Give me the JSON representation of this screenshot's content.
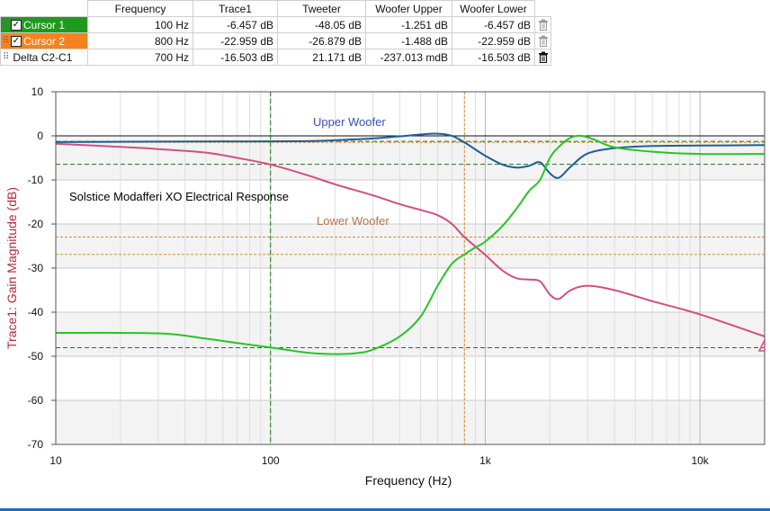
{
  "cursor_table": {
    "headers": [
      "Frequency",
      "Trace1",
      "Tweeter",
      "Woofer Upper",
      "Woofer Lower"
    ],
    "rows": [
      {
        "name": "Cursor 1",
        "checked": true,
        "cells": [
          "100 Hz",
          "-6.457 dB",
          "-48.05 dB",
          "-1.251 dB",
          "-6.457 dB"
        ]
      },
      {
        "name": "Cursor 2",
        "checked": true,
        "cells": [
          "800 Hz",
          "-22.959 dB",
          "-26.879 dB",
          "-1.488 dB",
          "-22.959 dB"
        ]
      },
      {
        "name": "Delta C2-C1",
        "checked": false,
        "cells": [
          "700 Hz",
          "-16.503 dB",
          "21.171 dB",
          "-237.013 mdB",
          "-16.503 dB"
        ]
      }
    ],
    "colors": {
      "cursor1": "#1f9a1f",
      "cursor2": "#f58220"
    },
    "icons": [
      "grip-icon",
      "checkbox-icon",
      "trash-icon"
    ]
  },
  "chart_data": {
    "type": "line",
    "title": "",
    "xlabel": "Frequency (Hz)",
    "ylabel": "Trace1: Gain Magnitude (dB)",
    "xscale": "log",
    "xlim": [
      10,
      20000
    ],
    "ylim": [
      -70,
      10
    ],
    "x_ticks": [
      10,
      100,
      1000,
      10000
    ],
    "x_tick_labels": [
      "10",
      "100",
      "1k",
      "10k"
    ],
    "y_ticks": [
      10,
      0,
      -10,
      -20,
      -30,
      -40,
      -50,
      -60,
      -70
    ],
    "y_tick_labels": [
      "10",
      "0",
      "-10",
      "-20",
      "-30",
      "-40",
      "-50",
      "-60",
      "-70"
    ],
    "grid": true,
    "annotations": [
      {
        "text": "Solstice Modafferi XO Electrical Response",
        "color": "#000000"
      },
      {
        "text": "Upper Woofer",
        "color": "#3b4fb8"
      },
      {
        "text": "Lower Woofer",
        "color": "#b8734a"
      }
    ],
    "series": [
      {
        "color": "#1f5f96",
        "x": [
          10,
          30,
          100,
          150,
          200,
          300,
          400,
          500,
          600,
          700,
          800,
          1000,
          1200,
          1400,
          1600,
          1800,
          2000,
          2200,
          2500,
          3000,
          4000,
          6000,
          10000,
          20000
        ],
        "y": [
          -1.4,
          -1.3,
          -1.25,
          -1.2,
          -1.0,
          -0.6,
          -0.1,
          0.3,
          0.5,
          0.0,
          -1.5,
          -4.5,
          -6.5,
          -7.2,
          -6.8,
          -6.0,
          -8.5,
          -9.5,
          -7.0,
          -4.0,
          -2.8,
          -2.3,
          -2.2,
          -2.1
        ]
      },
      {
        "color": "#d24f7e",
        "x": [
          10,
          20,
          30,
          50,
          70,
          100,
          150,
          200,
          300,
          400,
          500,
          600,
          700,
          800,
          1000,
          1200,
          1400,
          1600,
          1800,
          2000,
          2200,
          2500,
          3000,
          4000,
          6000,
          10000,
          20000
        ],
        "y": [
          -1.8,
          -2.5,
          -3.0,
          -3.8,
          -5.0,
          -6.5,
          -9.0,
          -11.0,
          -13.5,
          -15.5,
          -16.8,
          -18.0,
          -20.0,
          -22.96,
          -27.0,
          -30.5,
          -32.3,
          -32.6,
          -33.0,
          -36.0,
          -37.0,
          -35.0,
          -34.0,
          -35.0,
          -37.5,
          -40.5,
          -45.5
        ]
      },
      {
        "color": "#27c427",
        "x": [
          10,
          30,
          50,
          70,
          100,
          150,
          200,
          250,
          300,
          400,
          500,
          600,
          700,
          800,
          900,
          1000,
          1200,
          1400,
          1600,
          1800,
          2000,
          2200,
          2500,
          2800,
          3200,
          4000,
          6000,
          10000,
          20000
        ],
        "y": [
          -44.7,
          -44.8,
          -46.0,
          -47.0,
          -48.0,
          -49.2,
          -49.5,
          -49.3,
          -48.5,
          -45.5,
          -41.0,
          -34.0,
          -29.0,
          -26.9,
          -25.3,
          -24.0,
          -20.5,
          -16.5,
          -12.5,
          -10.0,
          -5.0,
          -2.5,
          -0.4,
          0.0,
          -0.8,
          -2.6,
          -3.6,
          -4.1,
          -4.1
        ]
      }
    ],
    "reference_lines": {
      "zero": 0,
      "cursor1": {
        "x": 100,
        "y_values": [
          -1.251,
          -6.457,
          -48.05
        ]
      },
      "cursor2": {
        "x": 800,
        "y_values": [
          -1.488,
          -22.959,
          -26.879
        ]
      }
    },
    "cursor1_color": "#1f7a1f",
    "cursor2_color": "#d98c2c",
    "label_color": "#b02a3a"
  }
}
